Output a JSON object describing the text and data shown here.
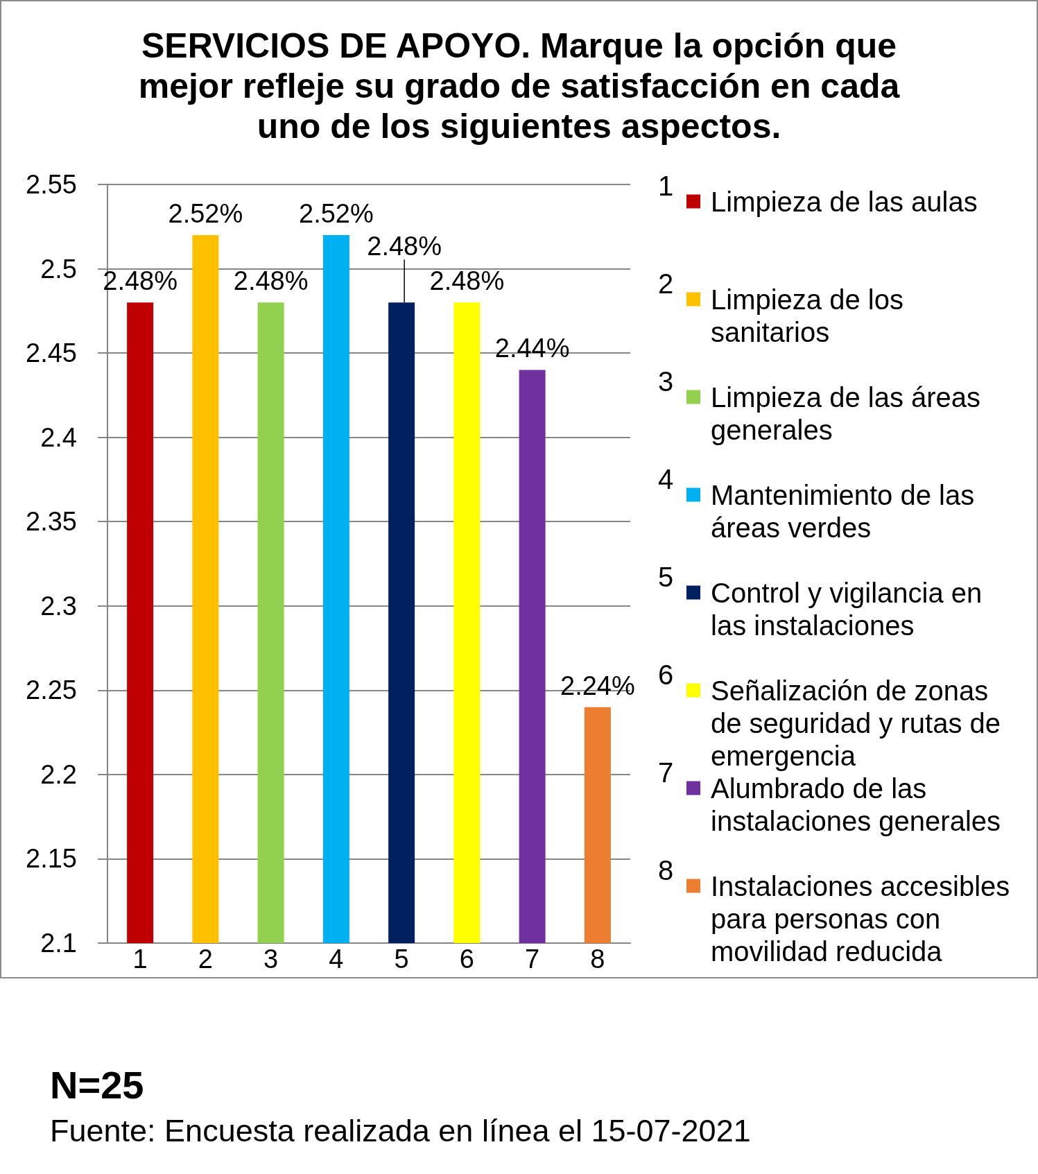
{
  "chart_data": {
    "type": "bar",
    "title": "SERVICIOS DE APOYO. Marque la opción que mejor refleje su grado de satisfacción en cada uno de los siguientes aspectos.",
    "categories": [
      "1",
      "2",
      "3",
      "4",
      "5",
      "6",
      "7",
      "8"
    ],
    "series": [
      {
        "name": "Limpieza de las aulas",
        "color": "#c00000",
        "values": [
          2.48,
          null,
          null,
          null,
          null,
          null,
          null,
          null
        ],
        "value_labels": [
          "2.48%",
          null,
          null,
          null,
          null,
          null,
          null,
          null
        ]
      },
      {
        "name": "Limpieza de los sanitarios",
        "color": "#ffc000",
        "values": [
          null,
          2.52,
          null,
          null,
          null,
          null,
          null,
          null
        ],
        "value_labels": [
          null,
          "2.52%",
          null,
          null,
          null,
          null,
          null,
          null
        ]
      },
      {
        "name": "Limpieza de las áreas generales",
        "color": "#92d050",
        "values": [
          null,
          null,
          2.48,
          null,
          null,
          null,
          null,
          null
        ],
        "value_labels": [
          null,
          null,
          "2.48%",
          null,
          null,
          null,
          null,
          null
        ]
      },
      {
        "name": "Mantenimiento de las áreas verdes",
        "color": "#00b0f0",
        "values": [
          null,
          null,
          null,
          2.52,
          null,
          null,
          null,
          null
        ],
        "value_labels": [
          null,
          null,
          null,
          "2.52%",
          null,
          null,
          null,
          null
        ]
      },
      {
        "name": "Control y vigilancia en las instalaciones",
        "color": "#002060",
        "values": [
          null,
          null,
          null,
          null,
          2.48,
          null,
          null,
          null
        ],
        "value_labels": [
          null,
          null,
          null,
          null,
          "2.48%",
          null,
          null,
          null
        ]
      },
      {
        "name": "Señalización de zonas de seguridad y rutas de emergencia",
        "color": "#ffff00",
        "values": [
          null,
          null,
          null,
          null,
          null,
          2.48,
          null,
          null
        ],
        "value_labels": [
          null,
          null,
          null,
          null,
          null,
          "2.48%",
          null,
          null
        ]
      },
      {
        "name": "Alumbrado de las instalaciones generales",
        "color": "#7030a0",
        "values": [
          null,
          null,
          null,
          null,
          null,
          null,
          2.44,
          null
        ],
        "value_labels": [
          null,
          null,
          null,
          null,
          null,
          null,
          "2.44%",
          null
        ]
      },
      {
        "name": "Instalaciones accesibles para personas con movilidad reducida",
        "color": "#ed7d31",
        "values": [
          null,
          null,
          null,
          null,
          null,
          null,
          null,
          2.24
        ],
        "value_labels": [
          null,
          null,
          null,
          null,
          null,
          null,
          null,
          "2.24%"
        ]
      }
    ],
    "ylim": [
      2.1,
      2.55
    ],
    "yticks": [
      2.1,
      2.15,
      2.2,
      2.25,
      2.3,
      2.35,
      2.4,
      2.45,
      2.5,
      2.55
    ],
    "grid": "y",
    "legend": "right",
    "annotations": [
      "N=25",
      "Fuente: Encuesta realizada en línea el 15-07-2021"
    ]
  }
}
